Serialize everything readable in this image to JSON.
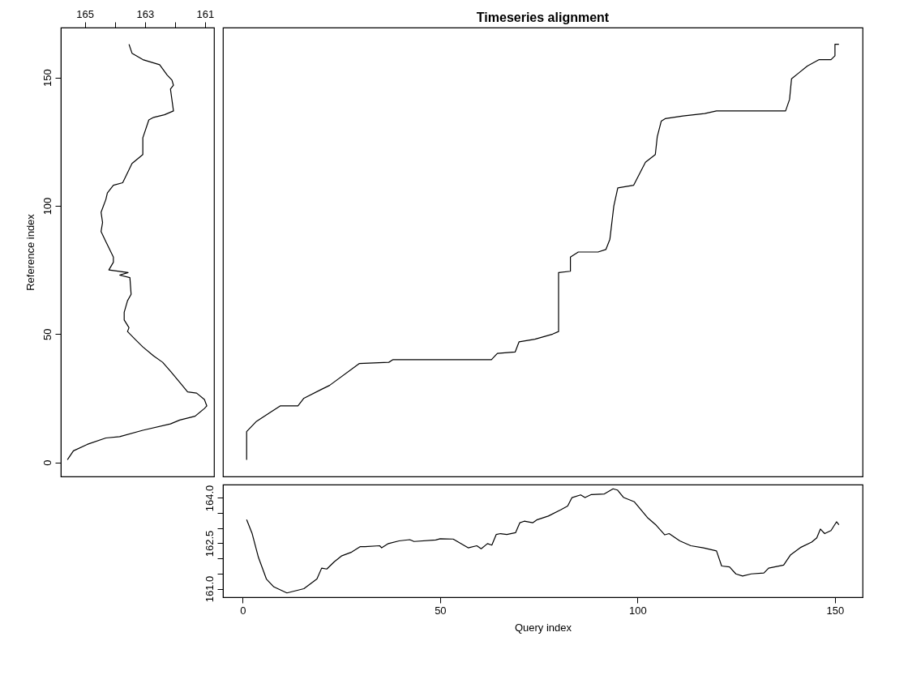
{
  "chart_data": [
    {
      "type": "line",
      "ylabel": "Reference index",
      "xlim": [
        165.8,
        160.7
      ],
      "xticks": [
        165,
        {
          "value": 164,
          "label": null
        },
        163,
        {
          "value": 162,
          "label": null
        },
        161
      ],
      "ylim": [
        -5.5,
        169.5
      ],
      "yticks": [
        0,
        50,
        100,
        150
      ],
      "series": [
        {
          "color": "#000000",
          "x": [
            165.58,
            165.38,
            164.92,
            164.3,
            163.84,
            163.07,
            162.15,
            161.84,
            161.33,
            161.02,
            160.94,
            161.02,
            161.28,
            161.58,
            161.79,
            162.15,
            162.41,
            162.71,
            163.07,
            163.33,
            163.58,
            163.53,
            163.69,
            163.69,
            163.58,
            163.46,
            163.5,
            163.84,
            163.56,
            164.2,
            164.05,
            164.05,
            164.3,
            164.46,
            164.41,
            164.46,
            164.3,
            164.25,
            164.05,
            163.74,
            163.43,
            163.07,
            163.07,
            162.87,
            162.71,
            162.35,
            162.05,
            162.15,
            162.05,
            162.1,
            162.26,
            162.51,
            163.07,
            163.43,
            163.53
          ],
          "values": [
            1,
            4.5,
            7,
            9.5,
            10,
            12.5,
            15,
            16.5,
            18,
            21,
            22,
            24.5,
            27,
            27.5,
            30.5,
            35.5,
            39,
            41.5,
            45,
            48,
            51,
            52.5,
            55.5,
            58.5,
            63,
            65.5,
            72,
            73,
            74,
            75,
            78,
            80,
            86,
            90,
            93.5,
            97.5,
            102.5,
            105,
            108,
            109,
            116.5,
            120,
            126.5,
            133.5,
            134.5,
            135.5,
            137,
            145.5,
            147,
            149,
            151,
            155,
            157,
            159.5,
            163
          ]
        }
      ]
    },
    {
      "type": "line",
      "title": "Timeseries alignment",
      "xlim": [
        -5,
        157
      ],
      "ylim": [
        -5.5,
        169.5
      ],
      "series": [
        {
          "color": "#000000",
          "x": [
            1,
            1,
            3.5,
            9.5,
            14,
            15.5,
            20,
            22,
            29.5,
            37,
            38,
            63,
            64.5,
            69,
            70,
            74,
            78.5,
            80,
            80,
            83,
            83,
            85,
            90,
            92,
            93,
            94,
            95,
            99,
            101,
            102,
            104.5,
            105,
            106,
            107,
            111.5,
            117,
            120,
            137.5,
            138.5,
            139,
            141,
            143,
            146,
            149,
            150,
            150,
            151
          ],
          "values": [
            1,
            12,
            16,
            22,
            22,
            25,
            28.5,
            30,
            38.5,
            39,
            40,
            40,
            42.5,
            43,
            47,
            48,
            50,
            51,
            74,
            74.5,
            80,
            82,
            82,
            83,
            87,
            100,
            107,
            108,
            114,
            117,
            120,
            127,
            133,
            134,
            135,
            136,
            137,
            137,
            141.5,
            149.5,
            152,
            154.5,
            157,
            157,
            158.5,
            163,
            163
          ]
        }
      ]
    },
    {
      "type": "line",
      "xlabel": "Query index",
      "xlim": [
        -5,
        157
      ],
      "xticks": [
        0,
        50,
        100,
        150
      ],
      "ylim": [
        160.72,
        164.44
      ],
      "yticks": [
        {
          "value": 161,
          "label": "161.0"
        },
        {
          "value": 161.5,
          "label": null
        },
        {
          "value": 162,
          "label": null
        },
        {
          "value": 162.5,
          "label": "162.5"
        },
        {
          "value": 163,
          "label": null
        },
        {
          "value": 163.5,
          "label": null
        },
        {
          "value": 164,
          "label": "164.0"
        }
      ],
      "series": [
        {
          "color": "#000000",
          "x": [
            1,
            2.4,
            4,
            6,
            7.9,
            11.2,
            15.5,
            18.8,
            20,
            21.3,
            23.2,
            25,
            27.6,
            29.8,
            31,
            34.7,
            35.2,
            36.9,
            39.6,
            42.3,
            43.4,
            48.9,
            50,
            53.3,
            57.1,
            59.3,
            60.4,
            62,
            63.1,
            64.2,
            65.3,
            66.9,
            69.1,
            70.2,
            71.3,
            73.5,
            74.6,
            77.4,
            80.6,
            82.3,
            83.4,
            85.6,
            86.7,
            88.3,
            91.6,
            93.8,
            94.9,
            96.5,
            99.2,
            102.5,
            104.7,
            106.9,
            108,
            110.7,
            113.5,
            116.7,
            120,
            121.3,
            123.3,
            124.9,
            126.6,
            128.8,
            132,
            133.2,
            137,
            138.7,
            141.4,
            144.1,
            145.4,
            146.3,
            147.4,
            149,
            150.4,
            151
          ],
          "values": [
            163.28,
            162.82,
            162.03,
            161.32,
            161.06,
            160.86,
            161.0,
            161.32,
            161.68,
            161.65,
            161.89,
            162.08,
            162.21,
            162.39,
            162.39,
            162.42,
            162.35,
            162.49,
            162.58,
            162.62,
            162.56,
            162.61,
            162.65,
            162.64,
            162.35,
            162.42,
            162.32,
            162.49,
            162.44,
            162.79,
            162.82,
            162.79,
            162.85,
            163.18,
            163.23,
            163.18,
            163.28,
            163.4,
            163.61,
            163.73,
            164.01,
            164.1,
            164.01,
            164.11,
            164.13,
            164.3,
            164.26,
            164.01,
            163.87,
            163.35,
            163.1,
            162.78,
            162.82,
            162.58,
            162.42,
            162.35,
            162.25,
            161.75,
            161.72,
            161.49,
            161.42,
            161.49,
            161.52,
            161.68,
            161.78,
            162.11,
            162.37,
            162.54,
            162.68,
            162.97,
            162.82,
            162.92,
            163.21,
            163.11
          ]
        }
      ]
    }
  ]
}
